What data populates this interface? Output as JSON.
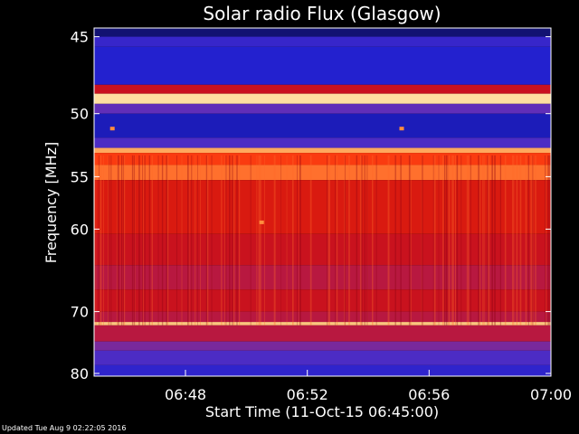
{
  "chart_data": {
    "type": "heatmap",
    "title": "Solar radio Flux (Glasgow)",
    "xlabel": "Start Time (11-Oct-15 06:45:00)",
    "ylabel": "Frequency [MHz]",
    "x_ticks": [
      "06:48",
      "06:52",
      "06:56",
      "07:00"
    ],
    "x_tick_values": [
      3,
      7,
      11,
      15
    ],
    "xlim": [
      0,
      15
    ],
    "y_ticks": [
      "45",
      "50",
      "55",
      "60",
      "70",
      "80"
    ],
    "y_tick_values": [
      45,
      50,
      55,
      60,
      70,
      80
    ],
    "ylim": [
      44.5,
      80.5
    ],
    "y_scale": "reciprocal",
    "grid": false,
    "colormap": [
      "#0a0a40",
      "#2020d0",
      "#5a30c0",
      "#a02070",
      "#d01010",
      "#ff4010",
      "#ff9040",
      "#ffe0a0"
    ],
    "bands": [
      {
        "from": 44.5,
        "to": 45.0,
        "level": 0.05
      },
      {
        "from": 45.0,
        "to": 45.6,
        "level": 0.2
      },
      {
        "from": 45.6,
        "to": 48.0,
        "level": 0.15
      },
      {
        "from": 48.0,
        "to": 48.6,
        "level": 0.55
      },
      {
        "from": 48.6,
        "to": 49.3,
        "level": 1.0
      },
      {
        "from": 49.3,
        "to": 50.0,
        "level": 0.3
      },
      {
        "from": 50.0,
        "to": 51.8,
        "level": 0.12
      },
      {
        "from": 51.8,
        "to": 52.6,
        "level": 0.25
      },
      {
        "from": 52.6,
        "to": 53.0,
        "level": 0.9
      },
      {
        "from": 53.0,
        "to": 54.0,
        "level": 0.7
      },
      {
        "from": 54.0,
        "to": 55.3,
        "level": 0.8
      },
      {
        "from": 55.3,
        "to": 60.5,
        "level": 0.6
      },
      {
        "from": 60.5,
        "to": 64.0,
        "level": 0.55
      },
      {
        "from": 64.0,
        "to": 67.0,
        "level": 0.5
      },
      {
        "from": 67.0,
        "to": 70.0,
        "level": 0.55
      },
      {
        "from": 70.0,
        "to": 71.5,
        "level": 0.5
      },
      {
        "from": 71.5,
        "to": 72.0,
        "level": 0.95
      },
      {
        "from": 72.0,
        "to": 74.5,
        "level": 0.5
      },
      {
        "from": 74.5,
        "to": 76.0,
        "level": 0.35
      },
      {
        "from": 76.0,
        "to": 78.5,
        "level": 0.25
      },
      {
        "from": 78.5,
        "to": 80.5,
        "level": 0.18
      }
    ],
    "spots": [
      {
        "t": 0.6,
        "f": 51.1,
        "level": 0.85
      },
      {
        "t": 10.1,
        "f": 51.1,
        "level": 0.85
      },
      {
        "t": 5.5,
        "f": 59.3,
        "level": 0.85
      }
    ]
  },
  "footer": {
    "updated": "Updated Tue Aug  9 02:22:05 2016"
  }
}
